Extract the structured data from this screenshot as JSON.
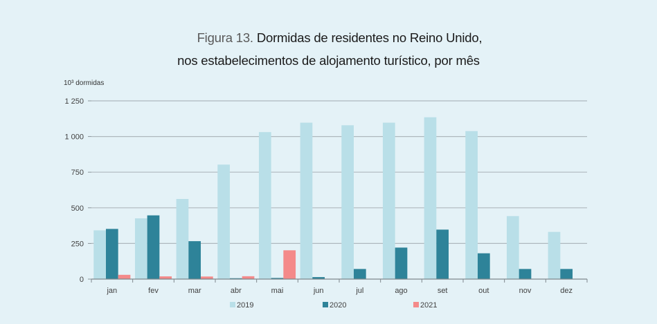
{
  "title": {
    "prefix": "Figura 13.",
    "line1": "Dormidas de residentes no Reino Unido,",
    "line2": "nos estabelecimentos de alojamento turístico, por mês"
  },
  "chart_data": {
    "type": "bar",
    "title": "Figura 13. Dormidas de residentes no Reino Unido, nos estabelecimentos de alojamento turístico, por mês",
    "ylabel": "10³ dormidas",
    "xlabel": "",
    "ylim": [
      0,
      1250
    ],
    "yticks": [
      0,
      250,
      500,
      750,
      1000,
      1250
    ],
    "ytick_labels": [
      "0",
      "250",
      "500",
      "750",
      "1 000",
      "1 250"
    ],
    "grid": true,
    "legend_position": "bottom",
    "categories": [
      "jan",
      "fev",
      "mar",
      "abr",
      "mai",
      "jun",
      "jul",
      "ago",
      "set",
      "out",
      "nov",
      "dez"
    ],
    "series": [
      {
        "name": "2019",
        "color": "#b9dfe8",
        "values": [
          342,
          426,
          562,
          803,
          1031,
          1097,
          1079,
          1097,
          1135,
          1038,
          442,
          331
        ]
      },
      {
        "name": "2020",
        "color": "#2e8399",
        "values": [
          352,
          447,
          266,
          6,
          8,
          14,
          71,
          221,
          347,
          181,
          71,
          71
        ]
      },
      {
        "name": "2021",
        "color": "#f48a8a",
        "values": [
          30,
          19,
          18,
          20,
          202,
          null,
          null,
          null,
          null,
          null,
          null,
          null
        ]
      }
    ]
  }
}
